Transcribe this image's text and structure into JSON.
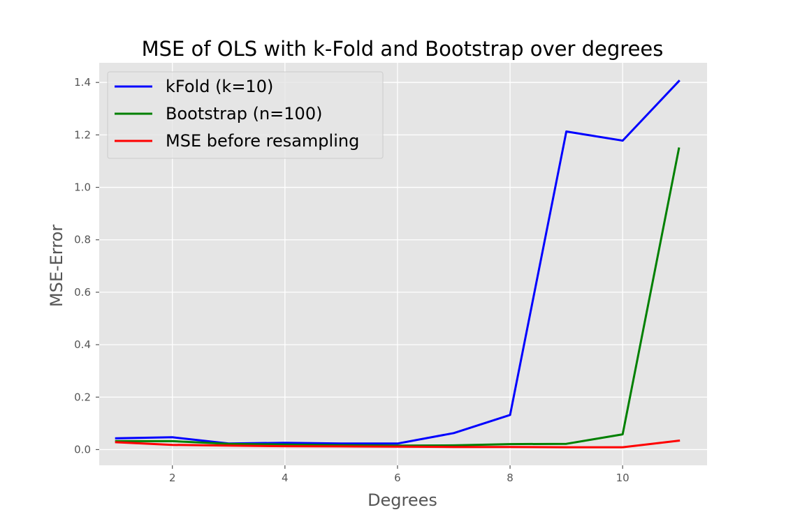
{
  "chart_data": {
    "type": "line",
    "title": "MSE of OLS with k-Fold and Bootstrap over degrees",
    "xlabel": "Degrees",
    "ylabel": "MSE-Error",
    "x": [
      1,
      2,
      3,
      4,
      5,
      6,
      7,
      8,
      9,
      10,
      11
    ],
    "xlim": [
      0.7,
      11.5
    ],
    "ylim": [
      -0.06,
      1.475
    ],
    "x_ticks": [
      2,
      4,
      6,
      8,
      10
    ],
    "y_ticks": [
      0.0,
      0.2,
      0.4,
      0.6,
      0.8,
      1.0,
      1.2,
      1.4
    ],
    "x_tick_labels": [
      "2",
      "4",
      "6",
      "8",
      "10"
    ],
    "y_tick_labels": [
      "0.0",
      "0.2",
      "0.4",
      "0.6",
      "0.8",
      "1.0",
      "1.2",
      "1.4"
    ],
    "grid": true,
    "legend_position": "top-left",
    "plot_background": "#e5e5e5",
    "grid_color": "#ffffff",
    "series": [
      {
        "name": "kFold (k=10)",
        "color": "#0000ff",
        "values": [
          0.043,
          0.047,
          0.023,
          0.026,
          0.023,
          0.023,
          0.063,
          0.132,
          1.213,
          1.178,
          1.405
        ]
      },
      {
        "name": "Bootstrap (n=100)",
        "color": "#008000",
        "values": [
          0.032,
          0.032,
          0.022,
          0.019,
          0.017,
          0.015,
          0.016,
          0.021,
          0.022,
          0.058,
          1.148
        ]
      },
      {
        "name": "MSE before resampling",
        "color": "#ff0000",
        "values": [
          0.028,
          0.018,
          0.015,
          0.013,
          0.012,
          0.011,
          0.01,
          0.01,
          0.009,
          0.009,
          0.034
        ]
      }
    ]
  }
}
